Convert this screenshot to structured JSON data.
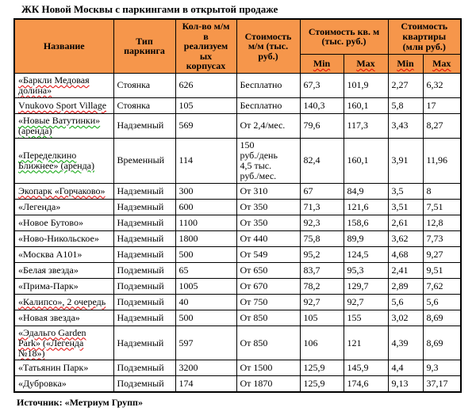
{
  "title": "ЖК Новой Москвы с паркингами в открытой продаже",
  "source": "Источник: «Метриум Групп»",
  "colors": {
    "header_bg": "#F6964B",
    "border": "#000000",
    "spellcheck_red": "#e00000",
    "spellcheck_green": "#00a000"
  },
  "table": {
    "headers": {
      "name": "Название",
      "parking_type": "Тип\nпаркинга",
      "count": "Кол-во м/м\nв\nреализуем\nых\nкорпусах",
      "price_mm": "Стоимость\nм/м (тыс.\nруб.)",
      "price_sqm": "Стоимость кв. м\n(тыс. руб.)",
      "price_flat": "Стоимость\nквартиры\n(млн руб.)",
      "min": "Min",
      "max": "Max"
    },
    "rows": [
      {
        "name": "«Баркли Медовая долина»",
        "type": "Стоянка",
        "count": "626",
        "price": "Бесплатно",
        "sqm_min": "67,3",
        "sqm_max": "101,9",
        "flat_min": "2,27",
        "flat_max": "6,32",
        "squiggle": "red"
      },
      {
        "name": "Vnukovo Sport Village",
        "type": "Стоянка",
        "count": "105",
        "price": "Бесплатно",
        "sqm_min": "140,3",
        "sqm_max": "160,1",
        "flat_min": "5,8",
        "flat_max": "17",
        "squiggle": "red"
      },
      {
        "name": "«Новые Ватутинки» (аренда)",
        "type": "Надземный",
        "count": "569",
        "price": "От 2,4/мес.",
        "sqm_min": "79,6",
        "sqm_max": "117,3",
        "flat_min": "3,43",
        "flat_max": "8,27",
        "squiggle": "green"
      },
      {
        "name": "«Переделкино Ближнее» (аренда)",
        "type": "Временный",
        "count": "114",
        "price": "150\nруб./день\n4,5 тыс.\nруб./мес.",
        "sqm_min": "82,4",
        "sqm_max": "160,1",
        "flat_min": "3,91",
        "flat_max": "11,96",
        "squiggle": "green"
      },
      {
        "name": "Экопарк «Горчаково»",
        "type": "Надземный",
        "count": "300",
        "price": "От 310",
        "sqm_min": "67",
        "sqm_max": "84,9",
        "flat_min": "3,5",
        "flat_max": "8",
        "squiggle": "red"
      },
      {
        "name": "«Легенда»",
        "type": "Надземный",
        "count": "600",
        "price": "От 350",
        "sqm_min": "71,3",
        "sqm_max": "121,6",
        "flat_min": "3,51",
        "flat_max": "7,51",
        "squiggle": null
      },
      {
        "name": "«Новое Бутово»",
        "type": "Надземный",
        "count": "1100",
        "price": "От 350",
        "sqm_min": "92,3",
        "sqm_max": "158,6",
        "flat_min": "2,61",
        "flat_max": "12,8",
        "squiggle": null
      },
      {
        "name": "«Ново-Никольское»",
        "type": "Надземный",
        "count": "1800",
        "price": "От 440",
        "sqm_min": "75,8",
        "sqm_max": "89,9",
        "flat_min": "3,62",
        "flat_max": "7,73",
        "squiggle": null
      },
      {
        "name": "«Москва А101»",
        "type": "Надземный",
        "count": "500",
        "price": "От 549",
        "sqm_min": "95,2",
        "sqm_max": "124,5",
        "flat_min": "4,68",
        "flat_max": "9,27",
        "squiggle": null
      },
      {
        "name": "«Белая звезда»",
        "type": "Подземный",
        "count": "65",
        "price": "От 650",
        "sqm_min": "83,7",
        "sqm_max": "95,3",
        "flat_min": "2,41",
        "flat_max": "9,51",
        "squiggle": null
      },
      {
        "name": "«Прима-Парк»",
        "type": "Подземный",
        "count": "1005",
        "price": "От 670",
        "sqm_min": "78,2",
        "sqm_max": "129,7",
        "flat_min": "2,89",
        "flat_max": "7,62",
        "squiggle": null
      },
      {
        "name": "«Калипсо», 2 очередь",
        "type": "Подземный",
        "count": "40",
        "price": "От 750",
        "sqm_min": "92,7",
        "sqm_max": "92,7",
        "flat_min": "5,6",
        "flat_max": "5,6",
        "squiggle": "red"
      },
      {
        "name": "«Новая звезда»",
        "type": "Надземный",
        "count": "500",
        "price": "От 850",
        "sqm_min": "105",
        "sqm_max": "155",
        "flat_min": "3,02",
        "flat_max": "8,69",
        "squiggle": null
      },
      {
        "name": "«Эдальго Garden Park» («Легенда №18»)",
        "type": "Надземный",
        "count": "597",
        "price": "От 850",
        "sqm_min": "106",
        "sqm_max": "121",
        "flat_min": "4,39",
        "flat_max": "8,69",
        "squiggle": "red"
      },
      {
        "name": "«Татьянин Парк»",
        "type": "Подземный",
        "count": "3200",
        "price": "От 1500",
        "sqm_min": "125,9",
        "sqm_max": "145,9",
        "flat_min": "4,4",
        "flat_max": "9,3",
        "squiggle": null
      },
      {
        "name": "«Дубровка»",
        "type": "Подземный",
        "count": "174",
        "price": "От 1870",
        "sqm_min": "125,9",
        "sqm_max": "174,6",
        "flat_min": "9,13",
        "flat_max": "37,17",
        "squiggle": null
      }
    ]
  }
}
